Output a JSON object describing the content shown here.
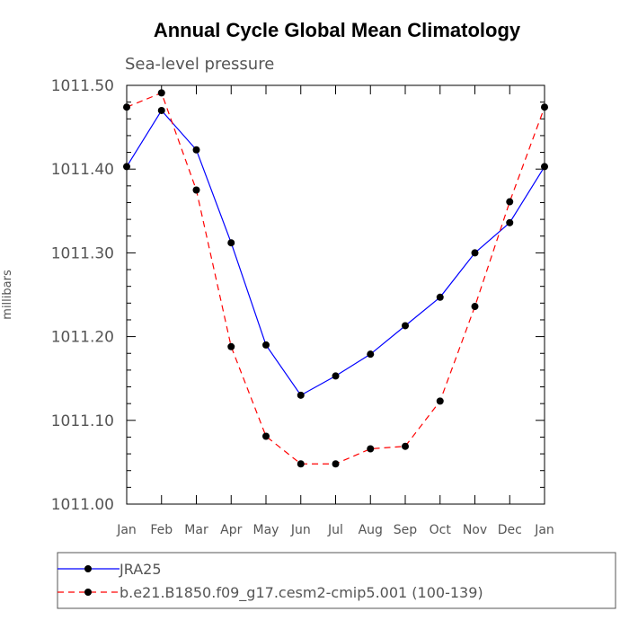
{
  "chart_data": {
    "type": "line",
    "title": "Annual Cycle Global Mean Climatology",
    "subtitle": "Sea-level pressure",
    "xlabel": "",
    "ylabel": "millibars",
    "categories": [
      "Jan",
      "Feb",
      "Mar",
      "Apr",
      "May",
      "Jun",
      "Jul",
      "Aug",
      "Sep",
      "Oct",
      "Nov",
      "Dec",
      "Jan"
    ],
    "ylim": [
      1011.0,
      1011.5
    ],
    "yticks": [
      "1011.00",
      "1011.10",
      "1011.20",
      "1011.30",
      "1011.40",
      "1011.50"
    ],
    "series": [
      {
        "name": "JRA25",
        "color": "#0000ff",
        "dash": "solid",
        "values": [
          1011.403,
          1011.47,
          1011.423,
          1011.312,
          1011.19,
          1011.13,
          1011.153,
          1011.179,
          1011.213,
          1011.247,
          1011.3,
          1011.336,
          1011.403
        ]
      },
      {
        "name": "b.e21.B1850.f09_g17.cesm2-cmip5.001 (100-139)",
        "color": "#ff0000",
        "dash": "dashed",
        "values": [
          1011.474,
          1011.491,
          1011.375,
          1011.188,
          1011.081,
          1011.048,
          1011.048,
          1011.066,
          1011.069,
          1011.123,
          1011.236,
          1011.361,
          1011.474
        ]
      }
    ],
    "legend": "bottom"
  }
}
